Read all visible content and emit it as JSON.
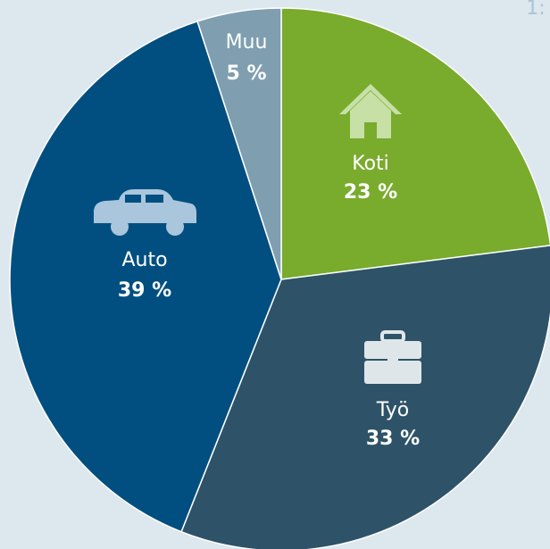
{
  "chart_data": {
    "type": "pie",
    "annotation": "1:",
    "categories": [
      "Koti",
      "Työ",
      "Auto",
      "Muu"
    ],
    "values": [
      23,
      33,
      39,
      5
    ],
    "value_labels": [
      "23 %",
      "33 %",
      "39 %",
      "5 %"
    ],
    "colors": [
      "#79ab2d",
      "#2e5368",
      "#014f80",
      "#7f9fb1"
    ]
  }
}
